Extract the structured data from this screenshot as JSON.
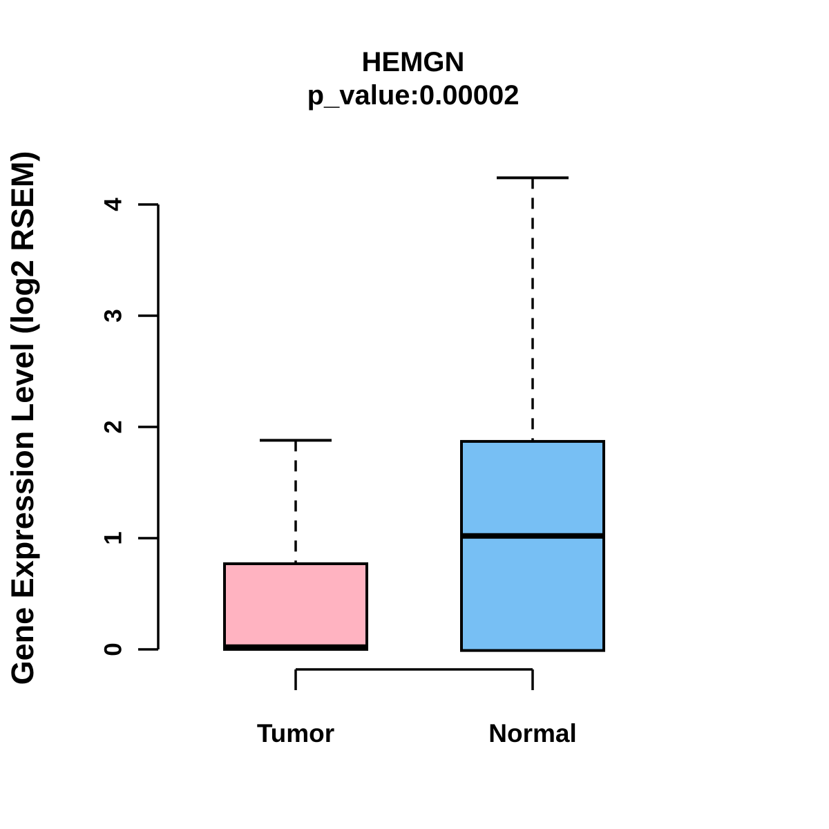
{
  "chart_data": {
    "type": "boxplot",
    "title": "HEMGN",
    "subtitle": "p_value:0.00002",
    "ylabel": "Gene Expression Level (log2 RSEM)",
    "xlabel": "",
    "categories": [
      "Tumor",
      "Normal"
    ],
    "yticks": [
      0,
      1,
      2,
      3,
      4
    ],
    "ylim": [
      -0.1,
      4.3
    ],
    "grid": "off",
    "legend": "none",
    "series": [
      {
        "name": "Tumor",
        "q1": 0.0,
        "median": 0.02,
        "q3": 0.77,
        "whisker_low": 0.0,
        "whisker_high": 1.88,
        "fill": "#FFB3C1"
      },
      {
        "name": "Normal",
        "q1": -0.01,
        "median": 1.02,
        "q3": 1.87,
        "whisker_low": -0.01,
        "whisker_high": 4.24,
        "fill": "#77BFF4"
      }
    ],
    "colors": {
      "box_border": "#000000",
      "median_line": "#000000",
      "axis": "#000000",
      "text": "#000000",
      "background": "#FFFFFF"
    }
  }
}
